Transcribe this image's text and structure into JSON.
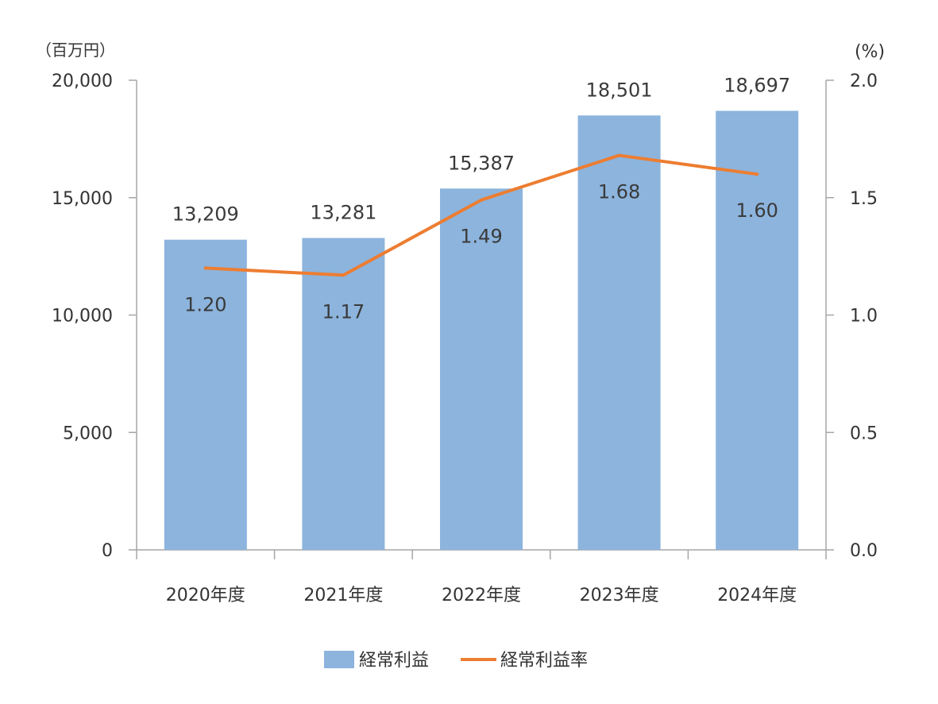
{
  "chart_data": {
    "type": "bar",
    "categories": [
      "2020年度",
      "2021年度",
      "2022年度",
      "2023年度",
      "2024年度"
    ],
    "series": [
      {
        "name": "経常利益",
        "type": "bar",
        "axis": "left",
        "values": [
          13209,
          13281,
          15387,
          18501,
          18697
        ],
        "labels": [
          "13,209",
          "13,281",
          "15,387",
          "18,501",
          "18,697"
        ],
        "color": "#8CB4DD"
      },
      {
        "name": "経常利益率",
        "type": "line",
        "axis": "right",
        "values": [
          1.2,
          1.17,
          1.49,
          1.68,
          1.6
        ],
        "labels": [
          "1.20",
          "1.17",
          "1.49",
          "1.68",
          "1.60"
        ],
        "color": "#ED7D31"
      }
    ],
    "left_axis": {
      "unit": "（百万円）",
      "ylim": [
        0,
        20000
      ],
      "ticks": [
        0,
        5000,
        10000,
        15000,
        20000
      ],
      "tick_labels": [
        "0",
        "5,000",
        "10,000",
        "15,000",
        "20,000"
      ]
    },
    "right_axis": {
      "unit": "(%)",
      "ylim": [
        0,
        2.0
      ],
      "ticks": [
        0,
        0.5,
        1.0,
        1.5,
        2.0
      ],
      "tick_labels": [
        "0.0",
        "0.5",
        "1.0",
        "1.5",
        "2.0"
      ]
    },
    "grid": false,
    "legend_position": "bottom-center",
    "axis_color": "#A6A6A6"
  }
}
